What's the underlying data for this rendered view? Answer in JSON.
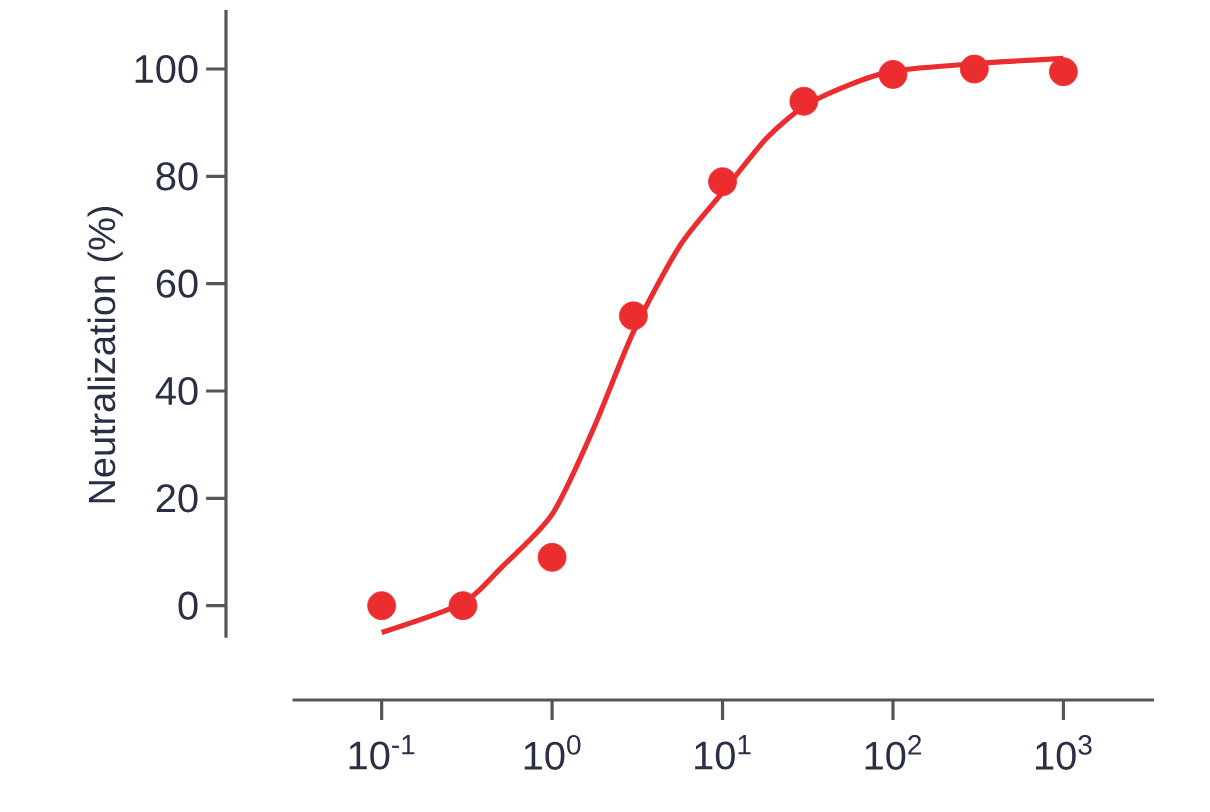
{
  "chart_data": {
    "type": "scatter",
    "ylabel": "Neutralization (%)",
    "log": "x",
    "marker": "circle",
    "xlim": [
      0.03,
      3400
    ],
    "ylim": [
      -6,
      111
    ],
    "xticks": [
      {
        "value": 0.1,
        "label": "10$^{-1}$"
      },
      {
        "value": 1,
        "label": "10$^{0}$"
      },
      {
        "value": 10,
        "label": "10$^{1}$"
      },
      {
        "value": 100,
        "label": "10$^{2}$"
      },
      {
        "value": 1000,
        "label": "10$^{3}$"
      }
    ],
    "yticks": [
      0,
      20,
      40,
      60,
      80,
      100
    ],
    "series": [
      {
        "color": "#ec2d2f",
        "x": [
          0.1,
          0.3,
          1,
          3,
          10,
          30,
          100,
          300,
          1000
        ],
        "values": [
          0,
          0,
          9,
          54,
          79,
          94,
          99,
          100,
          99.5
        ]
      },
      {
        "type": "line",
        "marker": "none",
        "color": "#ec2d2f",
        "x": [
          0.1,
          0.3,
          0.5,
          1,
          1.75,
          3,
          5.6,
          10,
          18,
          30,
          55,
          100,
          300,
          1000
        ],
        "values": [
          -5,
          0.5,
          7,
          17,
          33,
          51,
          67,
          77,
          87,
          93,
          97,
          99.6,
          101,
          102
        ]
      }
    ]
  }
}
